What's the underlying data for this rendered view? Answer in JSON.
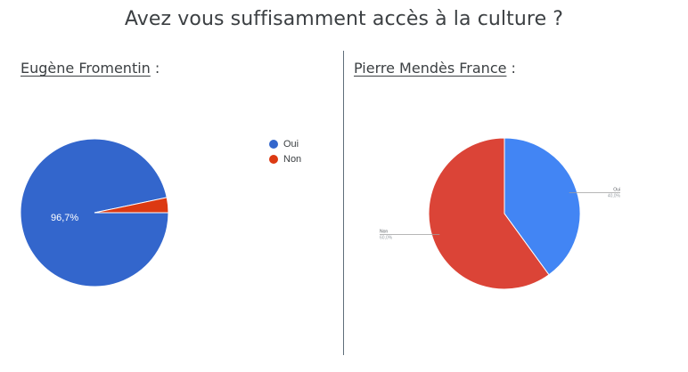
{
  "title": "Avez vous suffisamment accès à la culture ?",
  "sections": [
    {
      "name": "Eugène Fromentin",
      "suffix": " :"
    },
    {
      "name": "Pierre Mendès France",
      "suffix": " :"
    }
  ],
  "colors": {
    "blue_left": "#3366cc",
    "red_left": "#dc3912",
    "blue_right": "#4285f4",
    "red_right": "#db4437"
  },
  "legend": [
    {
      "label": "Oui",
      "color": "#3366cc"
    },
    {
      "label": "Non",
      "color": "#dc3912"
    }
  ],
  "chart_data": [
    {
      "type": "pie",
      "categories": [
        "Oui",
        "Non"
      ],
      "values": [
        96.7,
        3.3
      ],
      "data_labels": [
        "96,7%",
        ""
      ],
      "legend_position": "right"
    },
    {
      "type": "pie",
      "categories": [
        "Oui",
        "Non"
      ],
      "values": [
        40.0,
        60.0
      ],
      "data_labels": [
        "40,0%",
        "60,0%"
      ]
    }
  ]
}
